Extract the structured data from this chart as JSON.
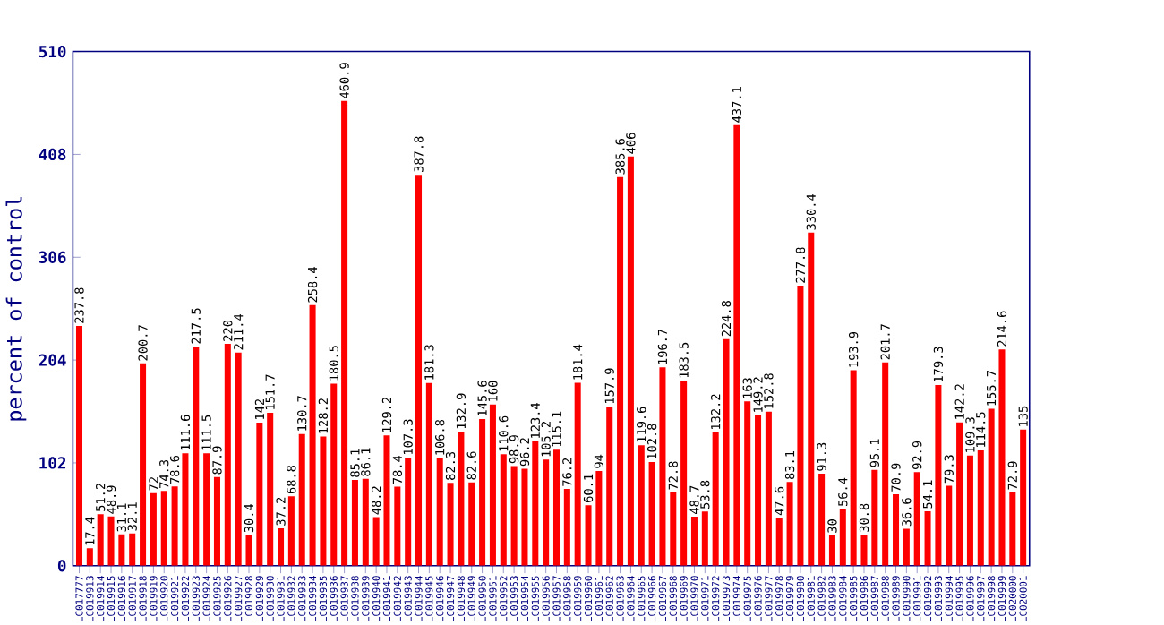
{
  "chart_data": {
    "type": "bar",
    "ylabel": "percent of control",
    "categories": [
      "LC017777",
      "LC019913",
      "LC019914",
      "LC019915",
      "LC019916",
      "LC019917",
      "LC019918",
      "LC019919",
      "LC019920",
      "LC019921",
      "LC019922",
      "LC019923",
      "LC019924",
      "LC019925",
      "LC019926",
      "LC019927",
      "LC019928",
      "LC019929",
      "LC019930",
      "LC019931",
      "LC019932",
      "LC019933",
      "LC019934",
      "LC019935",
      "LC019936",
      "LC019937",
      "LC019938",
      "LC019939",
      "LC019940",
      "LC019941",
      "LC019942",
      "LC019943",
      "LC019944",
      "LC019945",
      "LC019946",
      "LC019947",
      "LC019948",
      "LC019949",
      "LC019950",
      "LC019951",
      "LC019952",
      "LC019953",
      "LC019954",
      "LC019955",
      "LC019956",
      "LC019957",
      "LC019958",
      "LC019959",
      "LC019960",
      "LC019961",
      "LC019962",
      "LC019963",
      "LC019964",
      "LC019965",
      "LC019966",
      "LC019967",
      "LC019968",
      "LC019969",
      "LC019970",
      "LC019971",
      "LC019972",
      "LC019973",
      "LC019974",
      "LC019975",
      "LC019976",
      "LC019977",
      "LC019978",
      "LC019979",
      "LC019980",
      "LC019981",
      "LC019982",
      "LC019983",
      "LC019984",
      "LC019985",
      "LC019986",
      "LC019987",
      "LC019988",
      "LC019989",
      "LC019990",
      "LC019991",
      "LC019992",
      "LC019993",
      "LC019994",
      "LC019995",
      "LC019996",
      "LC019997",
      "LC019998",
      "LC019999",
      "LC020000",
      "LC020001"
    ],
    "values": [
      237.8,
      17.4,
      51.2,
      48.9,
      31.1,
      32.1,
      200.7,
      72,
      74.3,
      78.6,
      111.6,
      217.5,
      111.5,
      87.9,
      220,
      211.4,
      30.4,
      142,
      151.7,
      37.2,
      68.8,
      130.7,
      258.4,
      128.2,
      180.5,
      460.9,
      85.1,
      86.1,
      48.2,
      129.2,
      78.4,
      107.3,
      387.8,
      181.3,
      106.8,
      82.3,
      132.9,
      82.6,
      145.6,
      160,
      110.6,
      98.9,
      96.2,
      123.4,
      105.2,
      115.1,
      76.2,
      181.4,
      60.1,
      94,
      157.9,
      385.6,
      406,
      119.6,
      102.8,
      196.7,
      72.8,
      183.5,
      48.7,
      53.8,
      132.2,
      224.8,
      437.1,
      163,
      149.2,
      152.8,
      47.6,
      83.1,
      277.8,
      330.4,
      91.3,
      30,
      56.4,
      193.9,
      30.8,
      95.1,
      201.7,
      70.9,
      36.6,
      92.9,
      54.1,
      179.3,
      79.3,
      142.2,
      109.3,
      114.5,
      155.7,
      214.6,
      72.9,
      135
    ],
    "color": "#ff0000",
    "ylim": [
      0,
      510
    ],
    "yticks": [
      0,
      102,
      204,
      306,
      408,
      510
    ],
    "data_labels": true
  }
}
